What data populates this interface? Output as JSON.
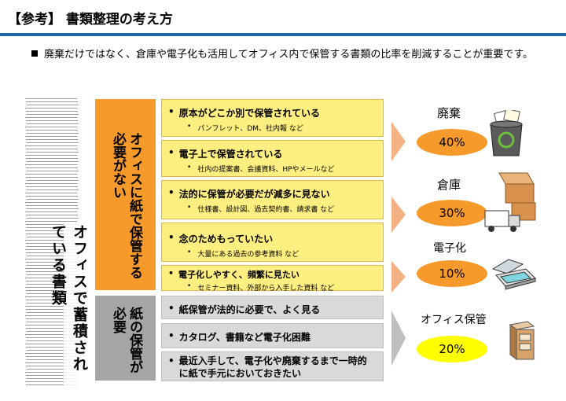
{
  "header": {
    "title": "【参考】 書類整理の考え方",
    "rule_color": "#1f67a8"
  },
  "subtitle": "廃棄だけではなく、倉庫や電子化も活用してオフィス内で保管する書類の比率を削減することが重要です。",
  "stack": {
    "label": "オフィスで蓄積されている書類"
  },
  "categories": {
    "no_paper": {
      "label": "オフィスに紙で保管する必要がない",
      "color": "#f79a2c"
    },
    "paper": {
      "label": "紙の保管が必要",
      "color": "#a6a6a6"
    }
  },
  "rows_no_paper": [
    {
      "main": "原本がどこか別で保管されている",
      "sub": "パンフレット、DM、社内報 など"
    },
    {
      "main": "電子上で保管されている",
      "sub": "社内の提案書、会議資料、HPやメールなど"
    },
    {
      "main": "法的に保管が必要だが減多に見ない",
      "sub": "仕様書、設計図、過去契約書、請求書 など"
    },
    {
      "main": "念のためもっていたい",
      "sub": "大量にある過去の参考資料 など"
    },
    {
      "main": "電子化しやすく、頻繁に見たい",
      "sub": "セミナー資料、外部から入手した資料 など"
    }
  ],
  "rows_paper": [
    {
      "main": "紙保管が法的に必要で、よく見る"
    },
    {
      "main": "カタログ、書籍など電子化困難"
    },
    {
      "main": "最近入手して、電子化や廃棄するまで一時的に紙で手元においておきたい"
    }
  ],
  "outcomes": [
    {
      "label": "廃棄",
      "percent": 40,
      "display": "40%",
      "color": "#f79a2c",
      "icon": "recycle-bin-icon"
    },
    {
      "label": "倉庫",
      "percent": 30,
      "display": "30%",
      "color": "#f79a2c",
      "icon": "warehouse-truck-icon"
    },
    {
      "label": "電子化",
      "percent": 10,
      "display": "10%",
      "color": "#f79a2c",
      "icon": "scanner-icon"
    },
    {
      "label": "オフィス保管",
      "percent": 20,
      "display": "20%",
      "color": "#ffff00",
      "icon": "cabinet-icon"
    }
  ],
  "bullet": "•"
}
